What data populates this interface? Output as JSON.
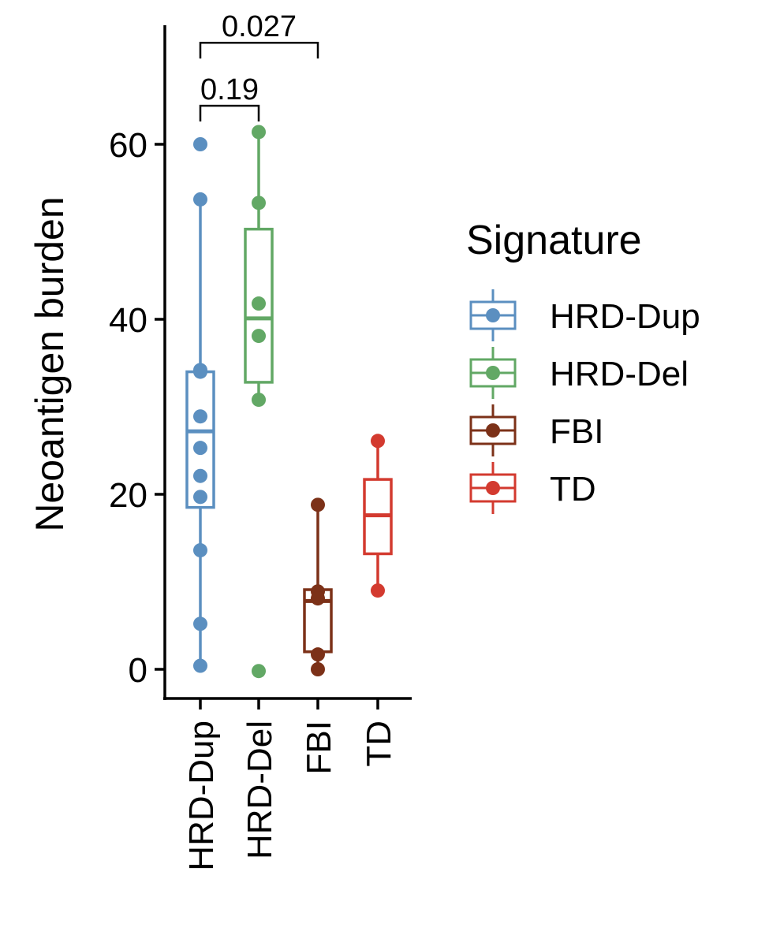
{
  "chart_data": {
    "type": "boxplot",
    "ylabel": "Neoantigen burden",
    "xlabel": "",
    "ylim": [
      -3.3,
      73.5
    ],
    "y_ticks": [
      0,
      20,
      40,
      60
    ],
    "categories": [
      "HRD-Dup",
      "HRD-Del",
      "FBI",
      "TD"
    ],
    "legend": {
      "title": "Signature",
      "position": "right",
      "entries": [
        {
          "label": "HRD-Dup",
          "color": "#5b8fc0"
        },
        {
          "label": "HRD-Del",
          "color": "#62a865"
        },
        {
          "label": "FBI",
          "color": "#7c3118"
        },
        {
          "label": "TD",
          "color": "#d33a2f"
        }
      ]
    },
    "series": [
      {
        "name": "HRD-Dup",
        "color": "#5b8fc0",
        "box": {
          "whisker_low": 0.4,
          "q1": 18.5,
          "median": 27.2,
          "q3": 34.0,
          "whisker_high": 53.7
        },
        "points": [
          60.0,
          53.7,
          34.2,
          34.0,
          28.9,
          25.3,
          22.1,
          19.7,
          13.6,
          5.2,
          0.4
        ]
      },
      {
        "name": "HRD-Del",
        "color": "#62a865",
        "box": {
          "whisker_low": 30.8,
          "q1": 32.8,
          "median": 40.1,
          "q3": 50.3,
          "whisker_high": 61.4
        },
        "points": [
          61.4,
          53.3,
          41.8,
          38.1,
          30.8,
          -0.2
        ]
      },
      {
        "name": "FBI",
        "color": "#7c3118",
        "box": {
          "whisker_low": 0.0,
          "q1": 2.0,
          "median": 7.8,
          "q3": 9.1,
          "whisker_high": 18.8
        },
        "points": [
          18.8,
          8.9,
          8.1,
          1.7,
          0.0
        ]
      },
      {
        "name": "TD",
        "color": "#d33a2f",
        "box": {
          "whisker_low": 9.0,
          "q1": 13.2,
          "median": 17.6,
          "q3": 21.7,
          "whisker_high": 26.1
        },
        "points": [
          26.1,
          9.0
        ]
      }
    ],
    "comparisons": [
      {
        "groups": [
          "HRD-Dup",
          "HRD-Del"
        ],
        "label": "0.19",
        "y": 64.4
      },
      {
        "groups": [
          "HRD-Dup",
          "FBI"
        ],
        "label": "0.027",
        "y": 71.6
      }
    ]
  }
}
